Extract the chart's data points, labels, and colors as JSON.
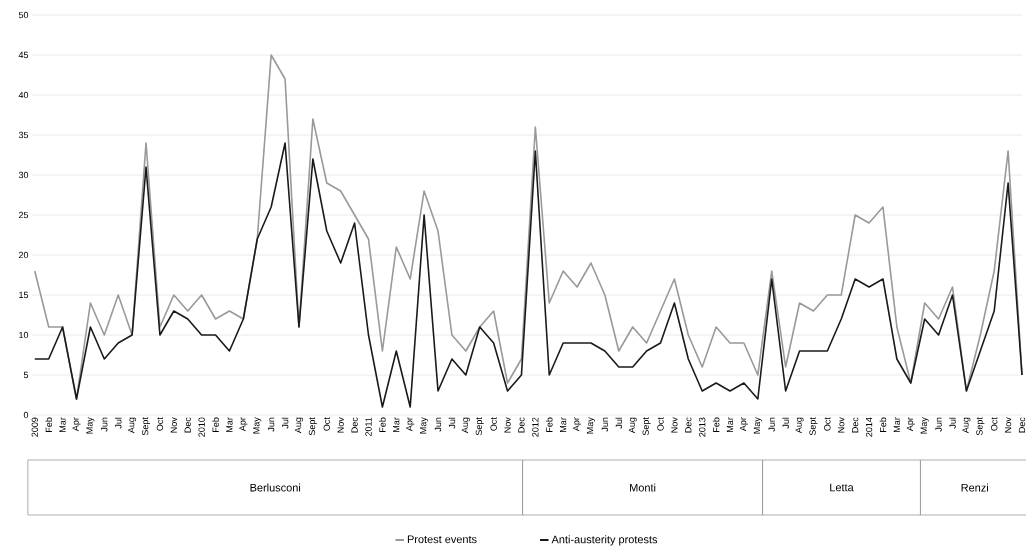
{
  "chart_data": {
    "type": "line",
    "categories": [
      "2009",
      "Feb",
      "Mar",
      "Apr",
      "May",
      "Jun",
      "Jul",
      "Aug",
      "Sept",
      "Oct",
      "Nov",
      "Dec",
      "2010",
      "Feb",
      "Mar",
      "Apr",
      "May",
      "Jun",
      "Jul",
      "Aug",
      "Sept",
      "Oct",
      "Nov",
      "Dec",
      "2011",
      "Feb",
      "Mar",
      "Apr",
      "May",
      "Jun",
      "Jul",
      "Aug",
      "Sept",
      "Oct",
      "Nov",
      "Dec",
      "2012",
      "Feb",
      "Mar",
      "Apr",
      "May",
      "Jun",
      "Jul",
      "Aug",
      "Sept",
      "Oct",
      "Nov",
      "Dec",
      "2013",
      "Feb",
      "Mar",
      "Apr",
      "May",
      "Jun",
      "Jul",
      "Aug",
      "Sept",
      "Oct",
      "Nov",
      "Dec",
      "2014",
      "Feb",
      "Mar",
      "Apr",
      "May",
      "Jun",
      "Jul",
      "Aug",
      "Sept",
      "Oct",
      "Nov",
      "Dec"
    ],
    "series": [
      {
        "name": "Protest events",
        "color": "#999999",
        "values": [
          18,
          11,
          11,
          2,
          14,
          10,
          15,
          10,
          34,
          11,
          15,
          13,
          15,
          12,
          13,
          12,
          22,
          45,
          42,
          11,
          37,
          29,
          28,
          25,
          22,
          8,
          21,
          17,
          28,
          23,
          10,
          8,
          11,
          13,
          4,
          7,
          36,
          14,
          18,
          16,
          19,
          15,
          8,
          11,
          9,
          13,
          17,
          10,
          6,
          11,
          9,
          9,
          5,
          18,
          6,
          14,
          13,
          15,
          15,
          25,
          24,
          26,
          11,
          4,
          14,
          12,
          16,
          3,
          10,
          18,
          33,
          5
        ]
      },
      {
        "name": "Anti-austerity protests",
        "color": "#1a1a1a",
        "values": [
          7,
          7,
          11,
          2,
          11,
          7,
          9,
          10,
          31,
          10,
          13,
          12,
          10,
          10,
          8,
          12,
          22,
          26,
          34,
          11,
          32,
          23,
          19,
          24,
          10,
          1,
          8,
          1,
          25,
          3,
          7,
          5,
          11,
          9,
          3,
          5,
          33,
          5,
          9,
          9,
          9,
          8,
          6,
          6,
          8,
          9,
          14,
          7,
          3,
          4,
          3,
          4,
          2,
          17,
          3,
          8,
          8,
          8,
          12,
          17,
          16,
          17,
          7,
          4,
          12,
          10,
          15,
          3,
          8,
          13,
          29,
          5
        ]
      }
    ],
    "ylim": [
      0,
      50
    ],
    "yticks": [
      0,
      5,
      10,
      15,
      20,
      25,
      30,
      35,
      40,
      45,
      50
    ],
    "grid": "y",
    "legend": "bottom",
    "marker": "none",
    "line_style": "solid",
    "annotations": [
      "Berlusconi",
      "Monti",
      "Letta",
      "Renzi"
    ]
  }
}
